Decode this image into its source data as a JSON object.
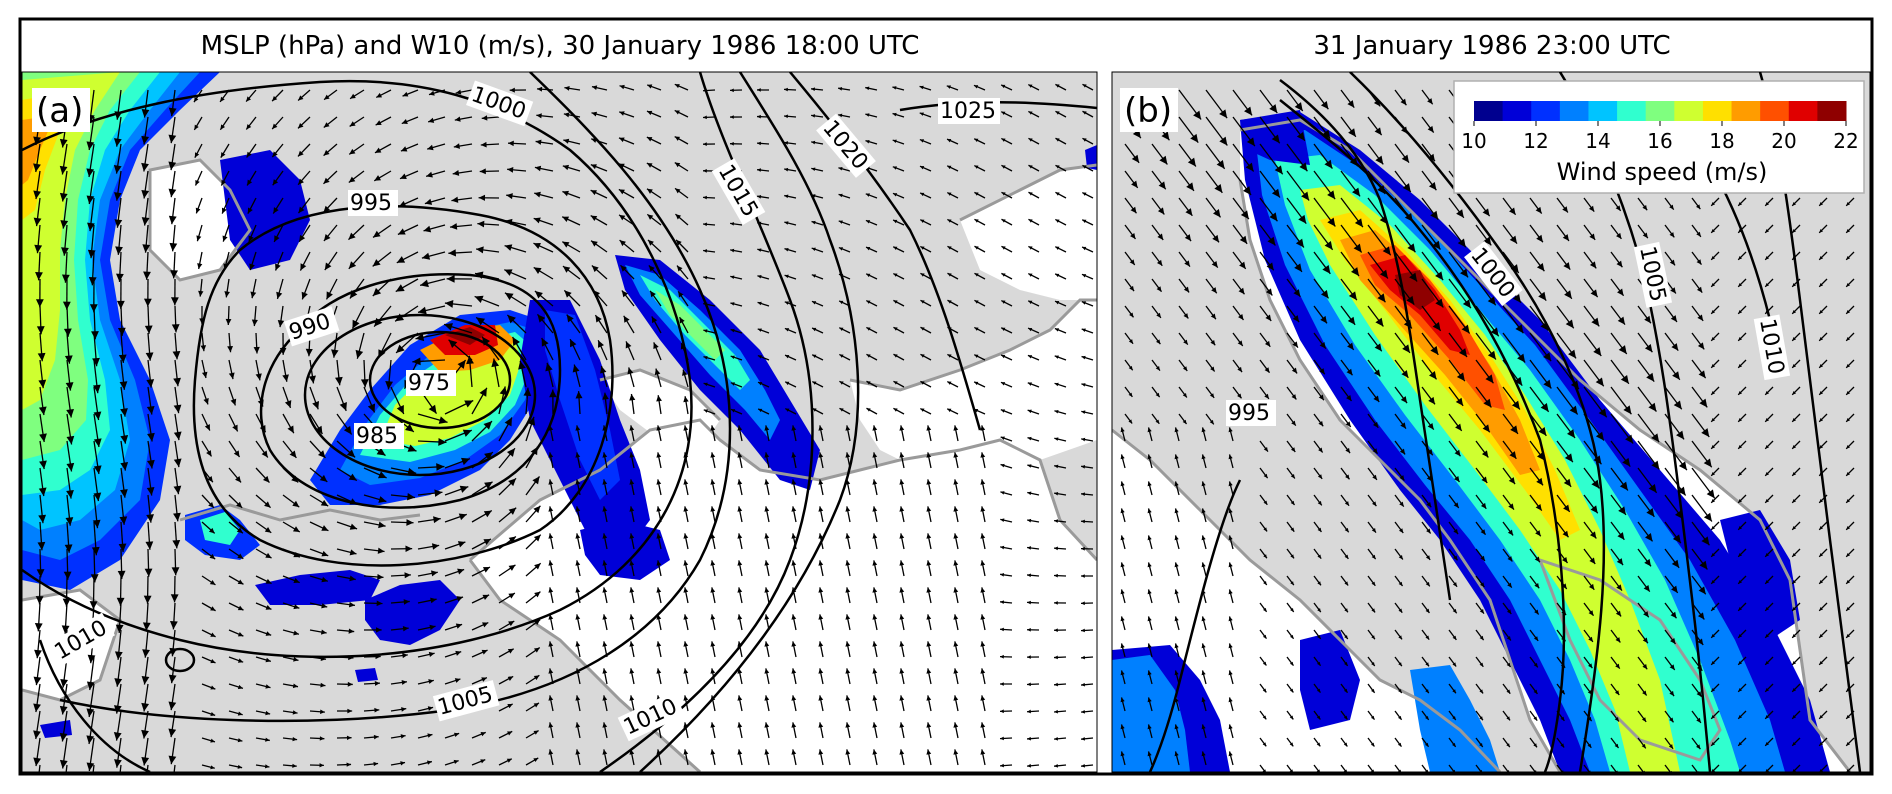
{
  "figure": {
    "panel_a_title": "MSLP (hPa) and W10 (m/s), 30 January 1986 18:00 UTC",
    "panel_b_title": "31 January 1986 23:00 UTC"
  },
  "colors": {
    "land_bg": "#d9d9d9",
    "sea_bg": "#ffffff",
    "coast": "#9a9a9a",
    "contour": "#000000",
    "arrow": "#000000"
  },
  "chart_data": [
    {
      "type": "heatmap",
      "panel_label": "(a)",
      "title": "MSLP (hPa) and W10 (m/s), 30 January 1986 18:00 UTC",
      "variables": [
        "MSLP (hPa)",
        "W10 (m/s)"
      ],
      "contour_labels": [
        "975",
        "985",
        "990",
        "995",
        "1000",
        "1005",
        "1010",
        "1010",
        "1015",
        "1020",
        "1025"
      ],
      "features": {
        "cyclone_center_hPa": 975,
        "max_wind_ms": 22
      }
    },
    {
      "type": "heatmap",
      "panel_label": "(b)",
      "title": "31 January 1986 23:00 UTC",
      "variables": [
        "MSLP (hPa)",
        "W10 (m/s)"
      ],
      "contour_labels": [
        "995",
        "1000",
        "1005",
        "1010"
      ],
      "colorbar": {
        "label": "Wind speed (m/s)",
        "min": 10,
        "max": 22,
        "tick_labels": [
          "10",
          "12",
          "14",
          "16",
          "18",
          "20",
          "22"
        ],
        "levels": [
          10,
          11,
          12,
          13,
          14,
          15,
          16,
          17,
          18,
          19,
          20,
          21,
          22
        ],
        "colors": [
          "#00008f",
          "#0000d8",
          "#0030ff",
          "#0080ff",
          "#00c4ff",
          "#30ffcf",
          "#7fff7f",
          "#cfff30",
          "#ffe000",
          "#ff9c00",
          "#ff5000",
          "#e00000",
          "#8f0000"
        ]
      },
      "features": {
        "max_wind_ms": 22
      }
    }
  ]
}
